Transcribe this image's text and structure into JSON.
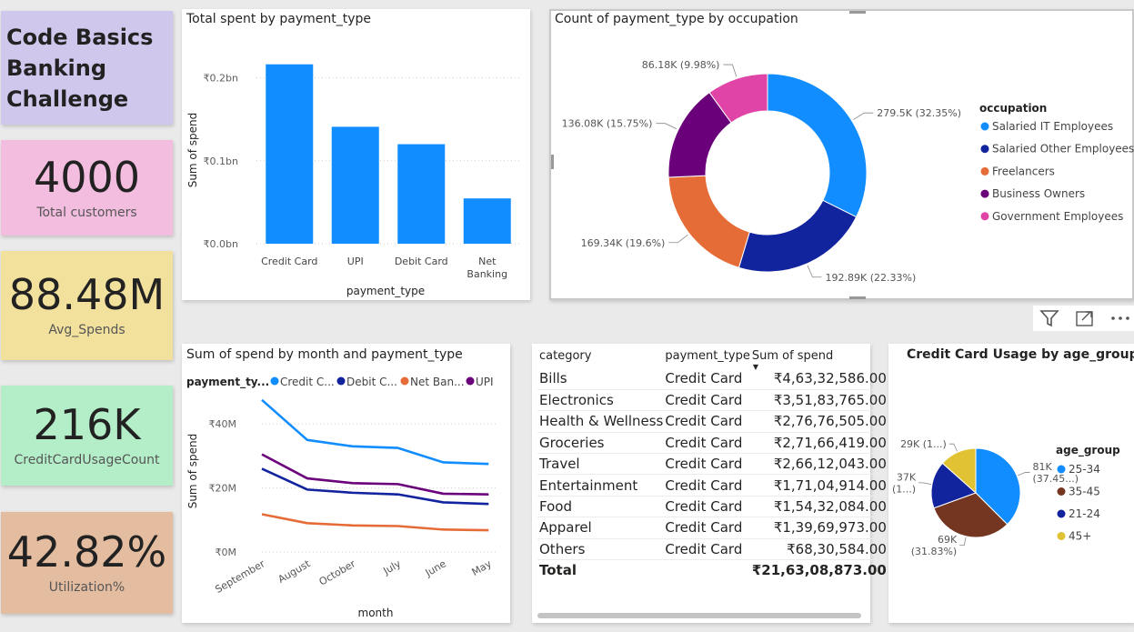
{
  "kpis": {
    "title_lines": [
      "Code Basics",
      "Banking",
      "Challenge"
    ],
    "customers": {
      "value": "4000",
      "label": "Total customers"
    },
    "avg_spends": {
      "value": "88.48M",
      "label": "Avg_Spends"
    },
    "cc_usage": {
      "value": "216K",
      "label": "CreditCardUsageCount"
    },
    "utilization": {
      "value": "42.82%",
      "label": "Utilization%"
    }
  },
  "colors": {
    "title_bg": "#d0c7ec",
    "customers_bg": "#f3bde0",
    "avg_bg": "#f1e19d",
    "cc_bg": "#b4eec9",
    "util_bg": "#e4bda1",
    "blue": "#118dff",
    "navy": "#12239e",
    "orange": "#e66c37",
    "purple": "#6b007b",
    "pink": "#e044a7",
    "yellow": "#e1c233",
    "brown": "#744ec2"
  },
  "icons": [
    "filter-icon",
    "focus-mode-icon",
    "more-options-icon"
  ],
  "chart_data": [
    {
      "id": "bar",
      "type": "bar",
      "title": "Total spent by payment_type",
      "xlabel": "payment_type",
      "ylabel": "Sum of spend",
      "categories": [
        "Credit Card",
        "UPI",
        "Debit Card",
        "Net Banking"
      ],
      "category_lines": [
        [
          "Credit Card"
        ],
        [
          "UPI"
        ],
        [
          "Debit Card"
        ],
        [
          "Net",
          "Banking"
        ]
      ],
      "values": [
        0.2163,
        0.141,
        0.12,
        0.0546
      ],
      "ylim": [
        0,
        0.25
      ],
      "yticks": [
        {
          "v": 0,
          "label": "₹0.0bn"
        },
        {
          "v": 0.1,
          "label": "₹0.1bn"
        },
        {
          "v": 0.2,
          "label": "₹0.2bn"
        }
      ],
      "color": "#118dff",
      "grid": true
    },
    {
      "id": "donut",
      "type": "pie",
      "title": "Count of payment_type by occupation",
      "legend_title": "occupation",
      "legend_position": "right",
      "slices": [
        {
          "name": "Salaried IT Employees",
          "value": 279.5,
          "label": "279.5K (32.35%)",
          "color": "#118dff"
        },
        {
          "name": "Salaried Other Employees",
          "value": 192.89,
          "label": "192.89K (22.33%)",
          "color": "#12239e"
        },
        {
          "name": "Freelancers",
          "value": 169.34,
          "label": "169.34K (19.6%)",
          "color": "#e66c37"
        },
        {
          "name": "Business Owners",
          "value": 136.08,
          "label": "136.08K (15.75%)",
          "color": "#6b007b"
        },
        {
          "name": "Government Employees",
          "value": 86.18,
          "label": "86.18K (9.98%)",
          "color": "#e044a7"
        }
      ]
    },
    {
      "id": "line",
      "type": "line",
      "title": "Sum of spend by month and payment_type",
      "xlabel": "month",
      "ylabel": "Sum of spend",
      "legend_title": "payment_ty...",
      "legend_position": "top",
      "categories": [
        "September",
        "August",
        "October",
        "July",
        "June",
        "May"
      ],
      "ylim": [
        0,
        50
      ],
      "yticks": [
        {
          "v": 0,
          "label": "₹0M"
        },
        {
          "v": 20,
          "label": "₹20M"
        },
        {
          "v": 40,
          "label": "₹40M"
        }
      ],
      "grid": true,
      "series": [
        {
          "name": "Credit C...",
          "color": "#118dff",
          "values": [
            47.5,
            35.0,
            33.0,
            32.5,
            28.0,
            27.5
          ]
        },
        {
          "name": "Debit C...",
          "color": "#12239e",
          "values": [
            26.0,
            19.5,
            18.5,
            18.0,
            15.5,
            15.0
          ]
        },
        {
          "name": "Net Ban...",
          "color": "#e66c37",
          "values": [
            11.8,
            9.0,
            8.3,
            8.1,
            7.0,
            6.8
          ]
        },
        {
          "name": "UPI",
          "color": "#6b007b",
          "values": [
            30.5,
            23.0,
            21.5,
            21.2,
            18.2,
            18.0
          ]
        }
      ]
    },
    {
      "id": "table",
      "type": "table",
      "columns": [
        "category",
        "payment_type",
        "Sum of spend"
      ],
      "rows": [
        [
          "Bills",
          "Credit Card",
          "₹4,63,32,586.00"
        ],
        [
          "Electronics",
          "Credit Card",
          "₹3,51,83,765.00"
        ],
        [
          "Health & Wellness",
          "Credit Card",
          "₹2,76,76,505.00"
        ],
        [
          "Groceries",
          "Credit Card",
          "₹2,71,66,419.00"
        ],
        [
          "Travel",
          "Credit Card",
          "₹2,66,12,043.00"
        ],
        [
          "Entertainment",
          "Credit Card",
          "₹1,71,04,914.00"
        ],
        [
          "Food",
          "Credit Card",
          "₹1,54,32,084.00"
        ],
        [
          "Apparel",
          "Credit Card",
          "₹1,39,69,973.00"
        ],
        [
          "Others",
          "Credit Card",
          "₹68,30,584.00"
        ]
      ],
      "total": [
        "Total",
        "",
        "₹21,63,08,873.00"
      ]
    },
    {
      "id": "pie",
      "type": "pie",
      "title": "Credit Card Usage by age_group",
      "legend_title": "age_group",
      "legend_position": "right",
      "slices": [
        {
          "name": "25-34",
          "value": 81,
          "label": [
            "81K",
            "(37.45...)"
          ],
          "color": "#118dff"
        },
        {
          "name": "35-45",
          "value": 69,
          "label": [
            "69K",
            "(31.83%)"
          ],
          "color": "#743521"
        },
        {
          "name": "21-24",
          "value": 37,
          "label": [
            "37K",
            "(1...)"
          ],
          "color": "#12239e"
        },
        {
          "name": "45+",
          "value": 29,
          "label": [
            "29K (1...)"
          ],
          "color": "#e1c233"
        }
      ]
    }
  ]
}
